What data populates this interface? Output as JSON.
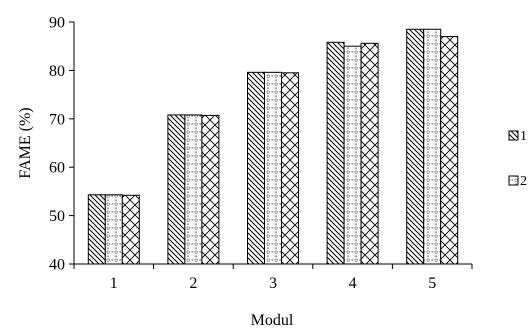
{
  "chart_data": {
    "type": "bar",
    "title": "",
    "xlabel": "Modul",
    "ylabel": "FAME (%)",
    "ylim": [
      40,
      90
    ],
    "yticks": [
      40,
      50,
      60,
      70,
      80,
      90
    ],
    "categories": [
      "1",
      "2",
      "3",
      "4",
      "5"
    ],
    "grid": false,
    "legend_position": "right",
    "series": [
      {
        "name": "1",
        "pattern": "diagonal-hatch",
        "values": [
          54.3,
          70.8,
          79.6,
          85.8,
          88.5
        ]
      },
      {
        "name": "2",
        "pattern": "dotted-grid",
        "values": [
          54.3,
          70.8,
          79.6,
          85.0,
          88.5
        ]
      },
      {
        "name": "",
        "pattern": "cross-hatch",
        "values": [
          54.2,
          70.7,
          79.5,
          85.6,
          87.0
        ]
      }
    ]
  }
}
